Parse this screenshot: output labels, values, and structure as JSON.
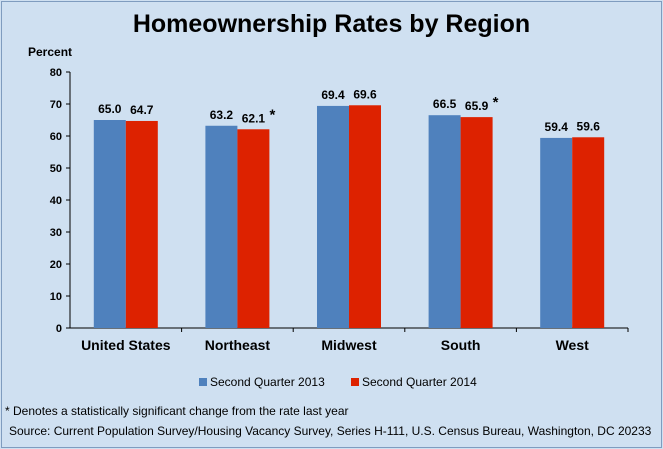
{
  "chart_data": {
    "type": "bar",
    "title": "Homeownership Rates by Region",
    "ylabel": "Percent",
    "xlabel": "",
    "ylim": [
      0,
      80
    ],
    "yticks": [
      0,
      10,
      20,
      30,
      40,
      50,
      60,
      70,
      80
    ],
    "categories": [
      "United States",
      "Northeast",
      "Midwest",
      "South",
      "West"
    ],
    "series": [
      {
        "name": "Second Quarter 2013",
        "color": "#4f81bd",
        "values": [
          65.0,
          63.2,
          69.4,
          66.5,
          59.4
        ],
        "labels": [
          "65.0",
          "63.2",
          "69.4",
          "66.5",
          "59.4"
        ]
      },
      {
        "name": "Second Quarter 2014",
        "color": "#dd2200",
        "values": [
          64.7,
          62.1,
          69.6,
          65.9,
          59.6
        ],
        "labels": [
          "64.7",
          "62.1",
          "69.6",
          "65.9",
          "59.6"
        ],
        "significant": [
          false,
          true,
          false,
          true,
          false
        ]
      }
    ],
    "significance_marker": "*",
    "legend_position": "bottom",
    "grid": false
  },
  "notes": {
    "footnote": "* Denotes a statistically significant change from the rate last year",
    "source": "Source: Current Population Survey/Housing Vacancy Survey,  Series H-111, U.S. Census Bureau, Washington, DC 20233"
  }
}
